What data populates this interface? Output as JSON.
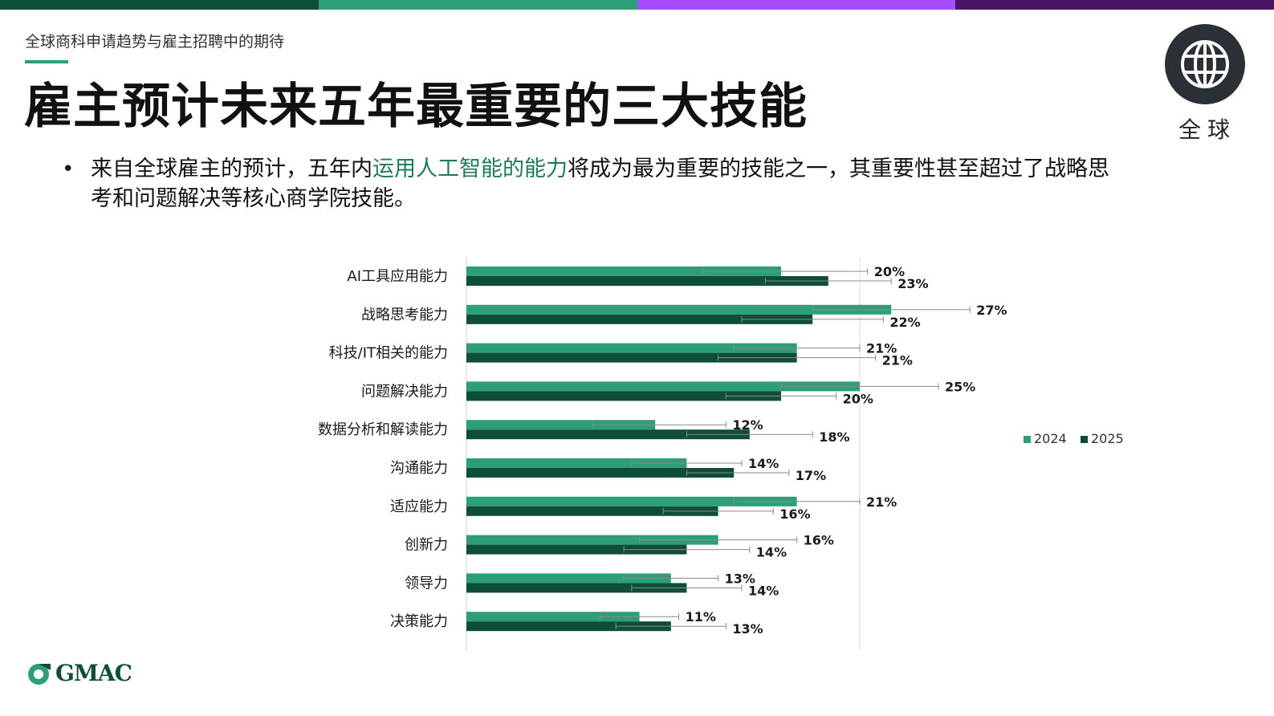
{
  "colors": {
    "bar_2024": "#2e9e78",
    "bar_2025": "#0e4d3a",
    "top_bar": [
      "#0e4d3a",
      "#2e9e78",
      "#a64dff",
      "#4a1566"
    ],
    "globe_badge": "#2b2f36",
    "accent": "#2e9e78",
    "highlight_text": "#1f7a5c"
  },
  "header": {
    "subtitle": "全球商科申请趋势与雇主招聘中的期待",
    "title": "雇主预计未来五年最重要的三大技能"
  },
  "badge": {
    "icon": "globe-icon",
    "label": "全球"
  },
  "bullet": {
    "marker": "•",
    "text_before": "来自全球雇主的预计，五年内",
    "text_highlight": "运用人工智能的能力",
    "text_after": "将成为最为重要的技能之一，其重要性甚至超过了战略思考和问题解决等核心商学院技能。"
  },
  "chart_data": {
    "type": "bar",
    "orientation": "horizontal",
    "categories": [
      "AI工具应用能力",
      "战略思考能力",
      "科技/IT相关的能力",
      "问题解决能力",
      "数据分析和解读能力",
      "沟通能力",
      "适应能力",
      "创新力",
      "领导力",
      "决策能力"
    ],
    "series": [
      {
        "name": "2024",
        "values": [
          20,
          27,
          21,
          25,
          12,
          14,
          21,
          16,
          13,
          11
        ],
        "labels": [
          "20%",
          "27%",
          "21%",
          "25%",
          "12%",
          "14%",
          "21%",
          "16%",
          "13%",
          "11%"
        ]
      },
      {
        "name": "2025",
        "values": [
          23,
          22,
          21,
          20,
          18,
          17,
          16,
          14,
          14,
          13
        ],
        "labels": [
          "23%",
          "22%",
          "21%",
          "20%",
          "18%",
          "17%",
          "16%",
          "14%",
          "14%",
          "13%"
        ]
      }
    ],
    "error_bars": {
      "2024": [
        [
          15,
          25.5
        ],
        [
          22,
          32
        ],
        [
          17,
          25
        ],
        [
          20,
          30
        ],
        [
          8,
          16.5
        ],
        [
          10.5,
          17.5
        ],
        [
          17,
          25
        ],
        [
          11,
          21
        ],
        [
          10,
          16
        ],
        [
          8.5,
          13.5
        ]
      ],
      "2025": [
        [
          19,
          27
        ],
        [
          17.5,
          26.5
        ],
        [
          16,
          26
        ],
        [
          16.5,
          23.5
        ],
        [
          14,
          22
        ],
        [
          14,
          20.5
        ],
        [
          12.5,
          19.5
        ],
        [
          10,
          18
        ],
        [
          10.5,
          17.5
        ],
        [
          9.5,
          16.5
        ]
      ]
    },
    "xlim": [
      0,
      30
    ],
    "reference_line": 25,
    "legend": {
      "position": "right",
      "entries": [
        "2024",
        "2025"
      ]
    }
  },
  "logo": {
    "text": "GMAC"
  }
}
